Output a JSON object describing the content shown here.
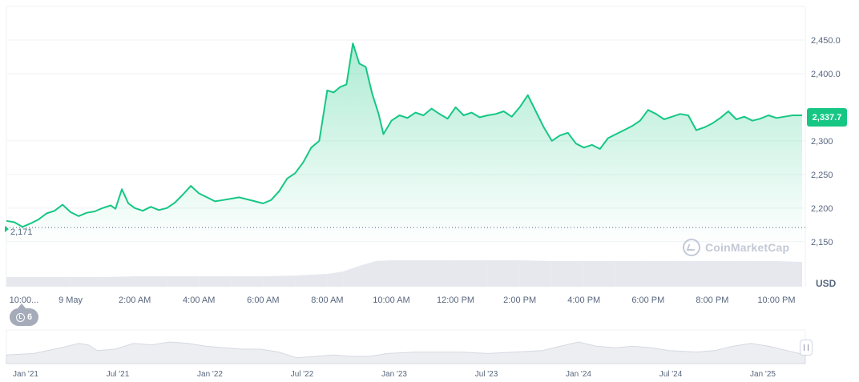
{
  "currency": "USD",
  "watermark": "CoinMarketCap",
  "events": {
    "count": "6",
    "icon": "clock-history-icon"
  },
  "start_label": "2,171",
  "current_price_label": "2,337.7",
  "colors": {
    "line": "#16c784",
    "fill_top": "#16c784",
    "volume": "#e6e8ee",
    "grid": "#eff2f5",
    "axis_text": "#58667e",
    "badge": "#16c784"
  },
  "chart_data": [
    {
      "type": "area",
      "ylim": [
        2145,
        2500
      ],
      "yticks": [
        {
          "value": 2450,
          "label": "2,450.0"
        },
        {
          "value": 2400,
          "label": "2,400.0"
        },
        {
          "value": 2300,
          "label": "2,300"
        },
        {
          "value": 2250,
          "label": "2,250"
        },
        {
          "value": 2200,
          "label": "2,200"
        },
        {
          "value": 2150,
          "label": "2,150"
        }
      ],
      "xlim": [
        0,
        24.9
      ],
      "xticks": [
        {
          "value": 0.0,
          "label": "10:00..."
        },
        {
          "value": 2.0,
          "label": "9 May"
        },
        {
          "value": 4.0,
          "label": "2:00 AM"
        },
        {
          "value": 6.0,
          "label": "4:00 AM"
        },
        {
          "value": 8.0,
          "label": "6:00 AM"
        },
        {
          "value": 10.0,
          "label": "8:00 AM"
        },
        {
          "value": 12.0,
          "label": "10:00 AM"
        },
        {
          "value": 14.0,
          "label": "12:00 PM"
        },
        {
          "value": 16.0,
          "label": "2:00 PM"
        },
        {
          "value": 18.0,
          "label": "4:00 PM"
        },
        {
          "value": 20.0,
          "label": "6:00 PM"
        },
        {
          "value": 22.0,
          "label": "8:00 PM"
        },
        {
          "value": 24.0,
          "label": "10:00 PM"
        }
      ],
      "price_reference": 2171,
      "series": [
        {
          "values": [
            [
              0.0,
              2181
            ],
            [
              0.25,
              2179
            ],
            [
              0.5,
              2172
            ],
            [
              0.75,
              2177
            ],
            [
              1.0,
              2183
            ],
            [
              1.25,
              2192
            ],
            [
              1.5,
              2196
            ],
            [
              1.75,
              2205
            ],
            [
              2.0,
              2194
            ],
            [
              2.25,
              2188
            ],
            [
              2.5,
              2193
            ],
            [
              2.75,
              2195
            ],
            [
              3.0,
              2200
            ],
            [
              3.25,
              2204
            ],
            [
              3.4,
              2199
            ],
            [
              3.6,
              2228
            ],
            [
              3.8,
              2207
            ],
            [
              4.0,
              2200
            ],
            [
              4.25,
              2196
            ],
            [
              4.5,
              2202
            ],
            [
              4.75,
              2197
            ],
            [
              5.0,
              2200
            ],
            [
              5.25,
              2208
            ],
            [
              5.5,
              2220
            ],
            [
              5.75,
              2233
            ],
            [
              6.0,
              2222
            ],
            [
              6.25,
              2216
            ],
            [
              6.5,
              2210
            ],
            [
              6.75,
              2212
            ],
            [
              7.0,
              2214
            ],
            [
              7.25,
              2216
            ],
            [
              7.5,
              2213
            ],
            [
              7.75,
              2210
            ],
            [
              8.0,
              2207
            ],
            [
              8.25,
              2212
            ],
            [
              8.5,
              2225
            ],
            [
              8.75,
              2244
            ],
            [
              9.0,
              2252
            ],
            [
              9.25,
              2268
            ],
            [
              9.5,
              2290
            ],
            [
              9.75,
              2300
            ],
            [
              10.0,
              2375
            ],
            [
              10.2,
              2372
            ],
            [
              10.4,
              2380
            ],
            [
              10.6,
              2384
            ],
            [
              10.8,
              2445
            ],
            [
              11.0,
              2415
            ],
            [
              11.2,
              2410
            ],
            [
              11.4,
              2370
            ],
            [
              11.6,
              2340
            ],
            [
              11.75,
              2310
            ],
            [
              12.0,
              2330
            ],
            [
              12.25,
              2338
            ],
            [
              12.5,
              2334
            ],
            [
              12.75,
              2342
            ],
            [
              13.0,
              2338
            ],
            [
              13.25,
              2348
            ],
            [
              13.5,
              2340
            ],
            [
              13.75,
              2333
            ],
            [
              14.0,
              2350
            ],
            [
              14.25,
              2338
            ],
            [
              14.5,
              2342
            ],
            [
              14.75,
              2335
            ],
            [
              15.0,
              2338
            ],
            [
              15.25,
              2340
            ],
            [
              15.5,
              2344
            ],
            [
              15.75,
              2336
            ],
            [
              16.0,
              2350
            ],
            [
              16.25,
              2368
            ],
            [
              16.5,
              2344
            ],
            [
              16.75,
              2320
            ],
            [
              17.0,
              2300
            ],
            [
              17.25,
              2308
            ],
            [
              17.5,
              2312
            ],
            [
              17.75,
              2296
            ],
            [
              18.0,
              2290
            ],
            [
              18.25,
              2294
            ],
            [
              18.5,
              2288
            ],
            [
              18.75,
              2304
            ],
            [
              19.0,
              2310
            ],
            [
              19.25,
              2316
            ],
            [
              19.5,
              2322
            ],
            [
              19.75,
              2330
            ],
            [
              20.0,
              2346
            ],
            [
              20.25,
              2340
            ],
            [
              20.5,
              2332
            ],
            [
              20.75,
              2336
            ],
            [
              21.0,
              2340
            ],
            [
              21.25,
              2338
            ],
            [
              21.5,
              2316
            ],
            [
              21.75,
              2320
            ],
            [
              22.0,
              2326
            ],
            [
              22.25,
              2334
            ],
            [
              22.5,
              2344
            ],
            [
              22.75,
              2332
            ],
            [
              23.0,
              2336
            ],
            [
              23.25,
              2330
            ],
            [
              23.5,
              2333
            ],
            [
              23.75,
              2338
            ],
            [
              24.0,
              2334
            ],
            [
              24.25,
              2336
            ],
            [
              24.5,
              2338
            ],
            [
              24.8,
              2338
            ]
          ]
        }
      ],
      "volume": [
        [
          0,
          12
        ],
        [
          1,
          12
        ],
        [
          2,
          12
        ],
        [
          3,
          12
        ],
        [
          4,
          13
        ],
        [
          5,
          13
        ],
        [
          6,
          13
        ],
        [
          7,
          13
        ],
        [
          8,
          13
        ],
        [
          9,
          14
        ],
        [
          10,
          16
        ],
        [
          10.5,
          19
        ],
        [
          11,
          26
        ],
        [
          11.5,
          32
        ],
        [
          12,
          33
        ],
        [
          13,
          33
        ],
        [
          14,
          33
        ],
        [
          15,
          33
        ],
        [
          16,
          33
        ],
        [
          17,
          32
        ],
        [
          18,
          32
        ],
        [
          19,
          32
        ],
        [
          20,
          32
        ],
        [
          21,
          32
        ],
        [
          22,
          32
        ],
        [
          23,
          32
        ],
        [
          24,
          32
        ],
        [
          24.8,
          31
        ]
      ]
    },
    {
      "type": "area",
      "xticks": [
        {
          "value": 0,
          "label": "Jan '21"
        },
        {
          "value": 1,
          "label": "Jul '21"
        },
        {
          "value": 2,
          "label": "Jan '22"
        },
        {
          "value": 3,
          "label": "Jul '22"
        },
        {
          "value": 4,
          "label": "Jan '23"
        },
        {
          "value": 5,
          "label": "Jul '23"
        },
        {
          "value": 6,
          "label": "Jan '24"
        },
        {
          "value": 7,
          "label": "Jul '24"
        },
        {
          "value": 8,
          "label": "Jan '25"
        }
      ],
      "series": [
        {
          "values": [
            [
              0,
              6
            ],
            [
              0.3,
              7
            ],
            [
              0.6,
              11
            ],
            [
              0.8,
              14
            ],
            [
              0.9,
              13
            ],
            [
              1,
              9
            ],
            [
              1.2,
              10
            ],
            [
              1.4,
              14
            ],
            [
              1.6,
              13
            ],
            [
              1.8,
              15
            ],
            [
              2,
              14
            ],
            [
              2.2,
              12
            ],
            [
              2.4,
              11
            ],
            [
              2.6,
              10
            ],
            [
              2.8,
              10
            ],
            [
              3,
              8
            ],
            [
              3.2,
              4
            ],
            [
              3.4,
              5
            ],
            [
              3.6,
              6
            ],
            [
              3.8,
              5
            ],
            [
              4,
              5
            ],
            [
              4.2,
              7
            ],
            [
              4.5,
              8
            ],
            [
              4.8,
              8
            ],
            [
              5,
              8
            ],
            [
              5.3,
              7
            ],
            [
              5.6,
              8
            ],
            [
              5.9,
              9
            ],
            [
              6.1,
              12
            ],
            [
              6.3,
              15
            ],
            [
              6.5,
              12
            ],
            [
              6.7,
              11
            ],
            [
              6.9,
              12
            ],
            [
              7.1,
              11
            ],
            [
              7.3,
              9
            ],
            [
              7.6,
              8
            ],
            [
              7.8,
              9
            ],
            [
              8,
              12
            ],
            [
              8.2,
              14
            ],
            [
              8.4,
              12
            ],
            [
              8.6,
              9
            ],
            [
              8.8,
              6
            ]
          ]
        }
      ]
    }
  ]
}
